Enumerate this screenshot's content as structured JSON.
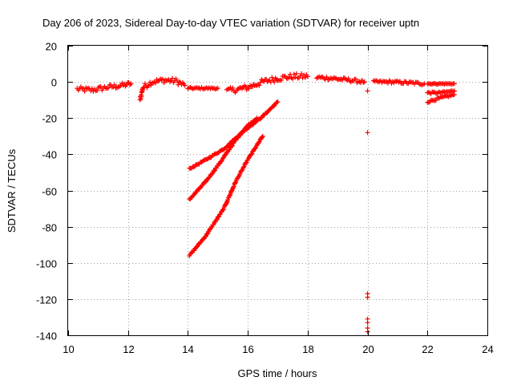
{
  "chart_data": {
    "type": "scatter",
    "title": "Day 206 of 2023, Sidereal Day-to-day VTEC variation (SDTVAR) for receiver uptn",
    "xlabel": "GPS time / hours",
    "ylabel": "SDTVAR / TECUs",
    "xlim": [
      10,
      24
    ],
    "ylim": [
      -140,
      20
    ],
    "xticks": [
      10,
      12,
      14,
      16,
      18,
      20,
      22,
      24
    ],
    "yticks": [
      -140,
      -120,
      -100,
      -80,
      -60,
      -40,
      -20,
      0,
      20
    ],
    "grid": true,
    "marker": "+",
    "series": [
      {
        "name": "SDTVAR",
        "color": "#ff0000",
        "segments": [
          {
            "x": [
              10.3,
              10.8,
              11.3,
              11.8,
              12.1
            ],
            "y": [
              -4,
              -4.5,
              -3,
              -2,
              -1
            ],
            "jitter": 1.4
          },
          {
            "x": [
              12.4,
              12.5,
              12.8,
              13.2,
              13.6,
              13.9
            ],
            "y": [
              -10,
              -3,
              0,
              1,
              0.5,
              -2
            ],
            "jitter": 1.5
          },
          {
            "x": [
              14.0,
              14.5,
              15.0
            ],
            "y": [
              -3.5,
              -3.5,
              -3.5
            ],
            "jitter": 0.5
          },
          {
            "x": [
              15.3,
              15.7,
              16.0,
              16.5,
              17.0,
              17.5,
              18.0
            ],
            "y": [
              -5,
              -4,
              -3,
              0,
              2,
              3,
              3
            ],
            "jitter": 1.6
          },
          {
            "x": [
              18.3,
              18.8,
              19.4,
              19.9
            ],
            "y": [
              2.5,
              2,
              1,
              0
            ],
            "jitter": 1.0
          },
          {
            "x": [
              20.2,
              20.8,
              21.4,
              21.9
            ],
            "y": [
              0,
              0,
              -0.5,
              -1
            ],
            "jitter": 0.8
          },
          {
            "x": [
              22.0,
              22.4,
              22.9
            ],
            "y": [
              -1,
              -1,
              -1
            ],
            "jitter": 0.3
          },
          {
            "x": [
              22.0,
              22.4,
              22.9
            ],
            "y": [
              -6,
              -6,
              -5
            ],
            "jitter": 0.5
          },
          {
            "x": [
              22.0,
              22.4,
              22.9
            ],
            "y": [
              -11,
              -9,
              -7
            ],
            "jitter": 0.6
          },
          {
            "x": [
              14.05,
              14.6,
              15.2,
              15.8,
              16.5,
              17.0
            ],
            "y": [
              -48,
              -43,
              -37,
              -28,
              -19,
              -11
            ],
            "jitter": 0.4
          },
          {
            "x": [
              14.05,
              14.6,
              15.1,
              15.6,
              16.0,
              16.3
            ],
            "y": [
              -65,
              -55,
              -44,
              -32,
              -24,
              -20
            ],
            "jitter": 0.4
          },
          {
            "x": [
              14.05,
              14.6,
              15.2,
              15.6,
              16.0,
              16.5
            ],
            "y": [
              -96,
              -85,
              -70,
              -55,
              -43,
              -30
            ],
            "jitter": 0.4
          }
        ],
        "points": [
          {
            "x": 20.0,
            "y": -5
          },
          {
            "x": 20.0,
            "y": -28
          },
          {
            "x": 20.0,
            "y": -117
          },
          {
            "x": 20.0,
            "y": -119
          },
          {
            "x": 20.0,
            "y": -131
          },
          {
            "x": 20.0,
            "y": -133
          },
          {
            "x": 20.0,
            "y": -136
          },
          {
            "x": 20.0,
            "y": -138
          }
        ]
      }
    ]
  }
}
